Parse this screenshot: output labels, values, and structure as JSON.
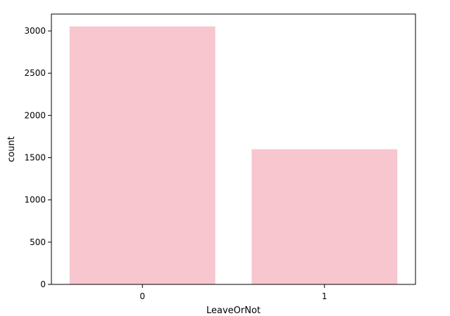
{
  "chart_data": {
    "type": "bar",
    "title": "",
    "xlabel": "LeaveOrNot",
    "ylabel": "count",
    "categories": [
      "0",
      "1"
    ],
    "values": [
      3053,
      1600
    ],
    "ylim": [
      0,
      3200
    ],
    "yticks": [
      0,
      500,
      1000,
      1500,
      2000,
      2500,
      3000
    ],
    "grid": false,
    "legend": "none",
    "bar_color": "#f7c6ce",
    "axis_color": "#000000"
  }
}
